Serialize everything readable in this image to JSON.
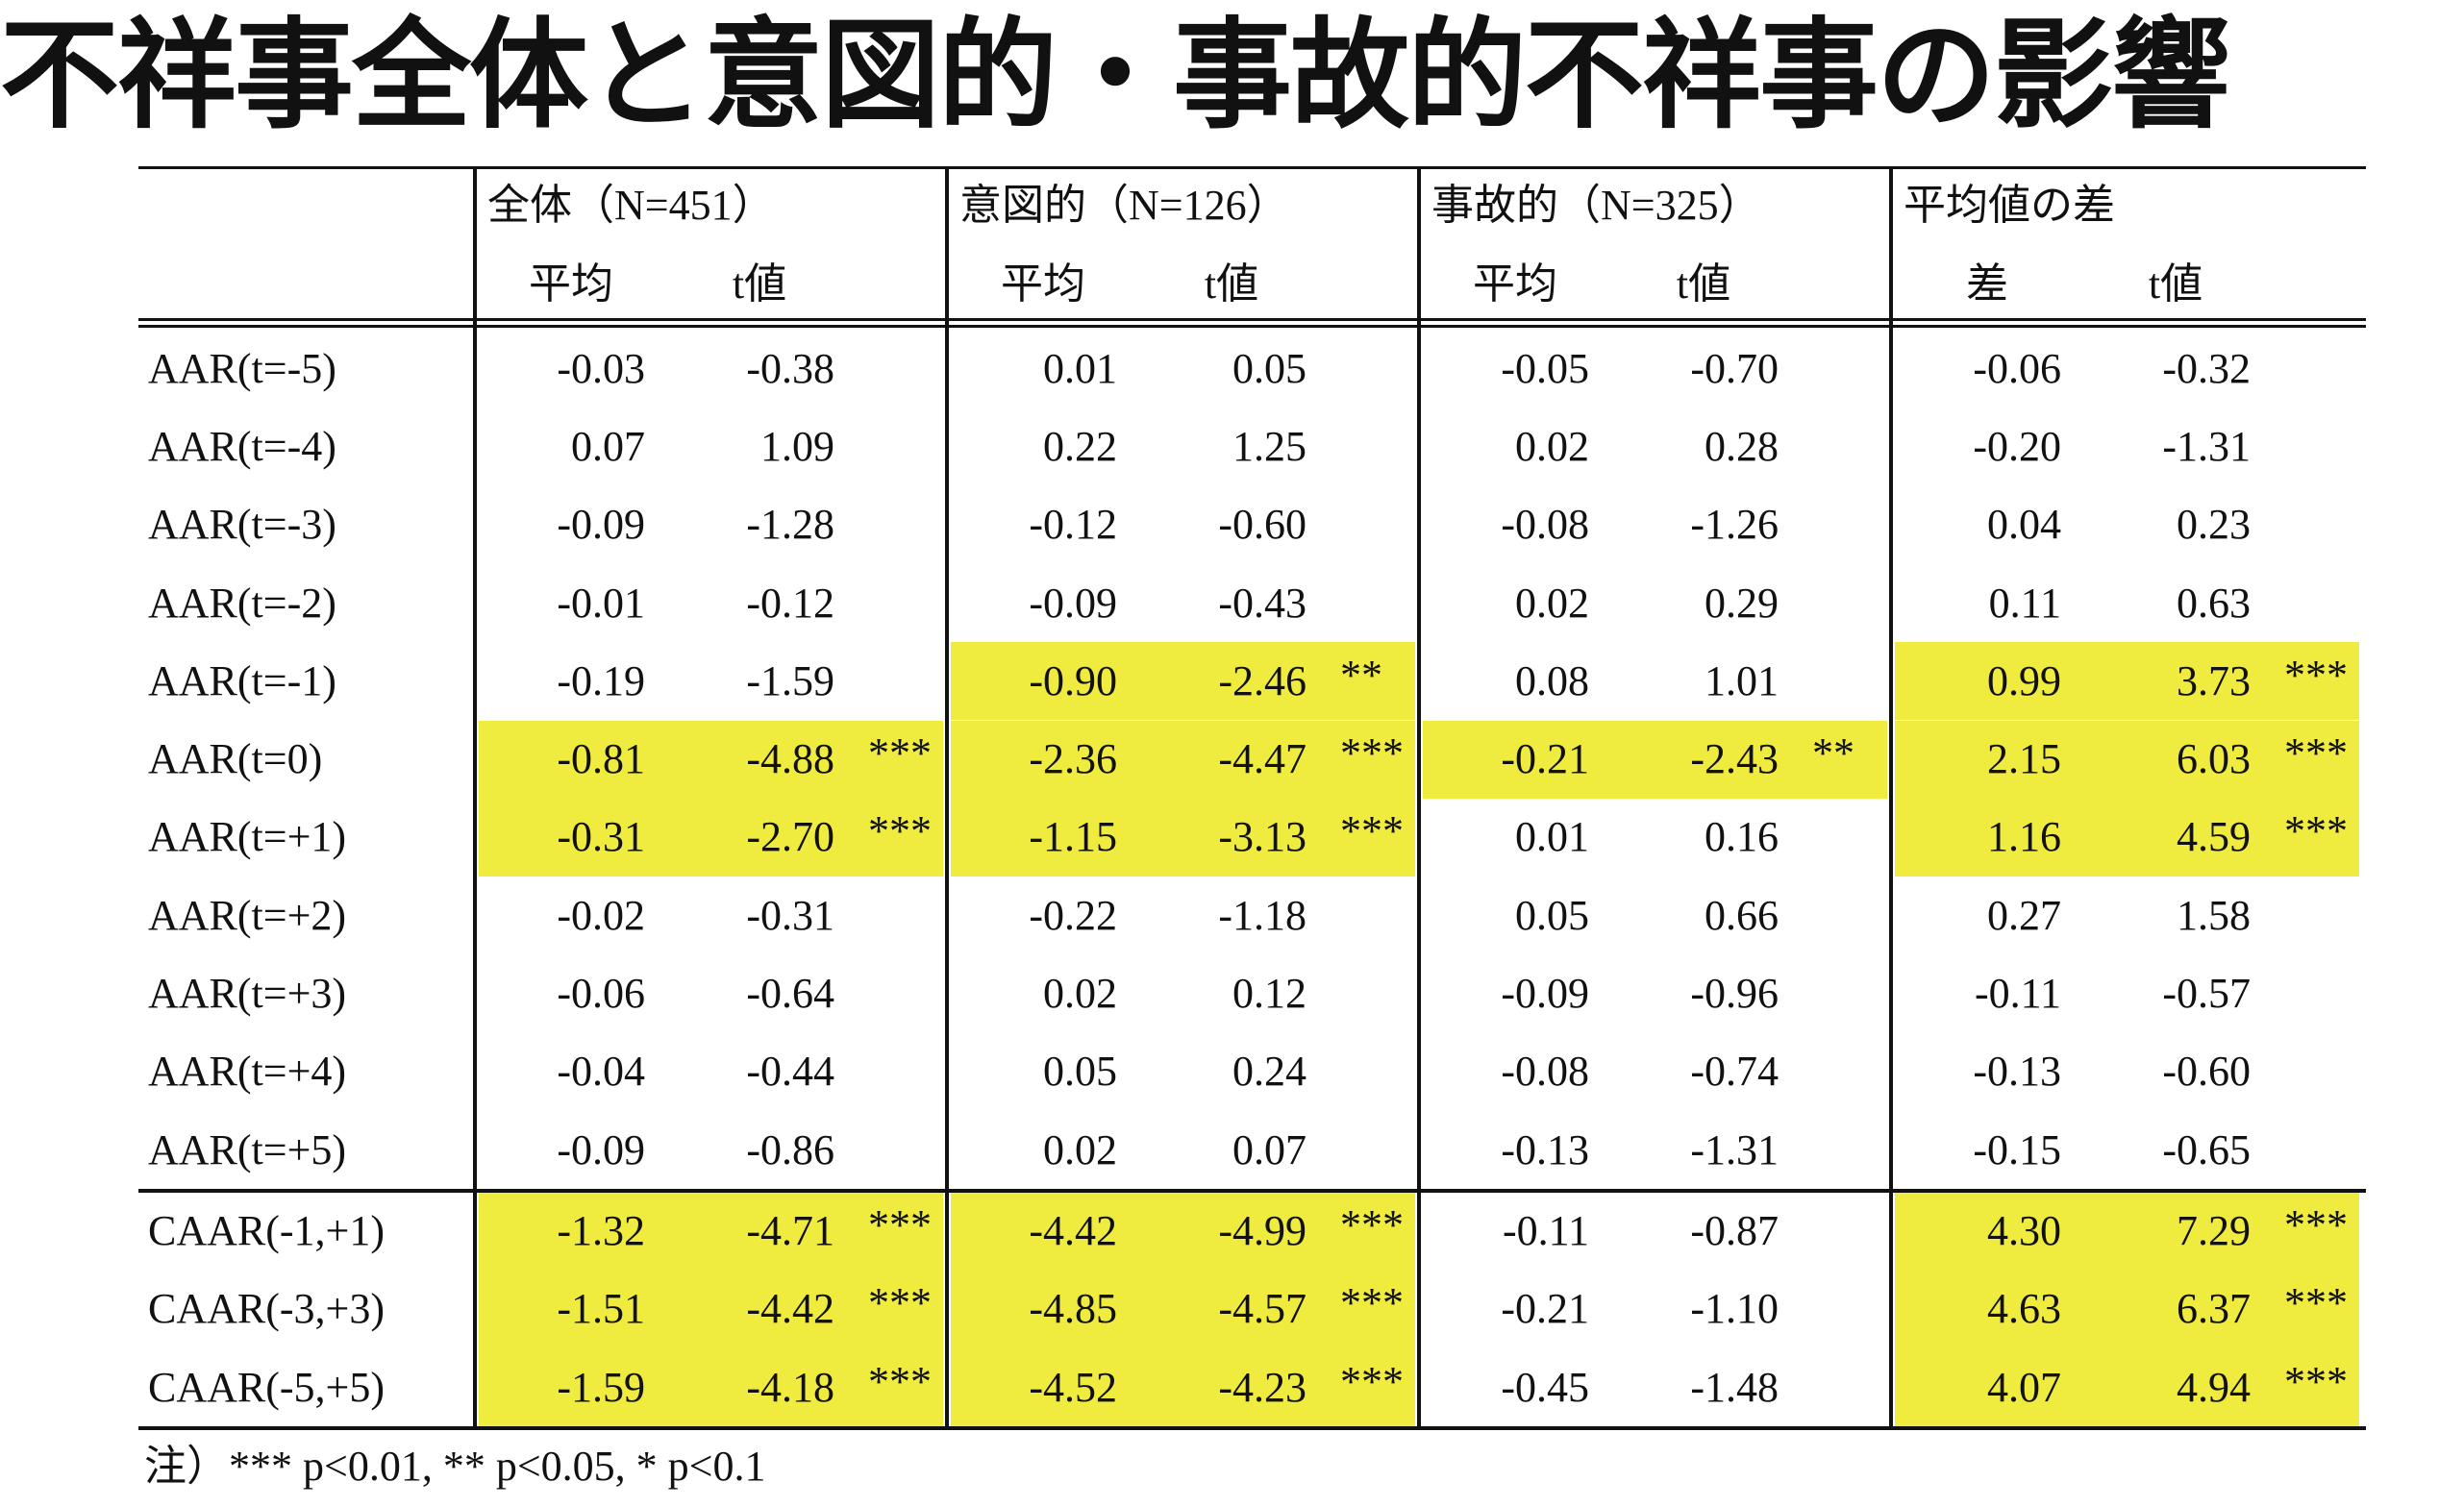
{
  "title": "不祥事全体と意図的・事故的不祥事の影響",
  "table": {
    "groups": [
      {
        "name": "全体（N=451）",
        "subheaders": [
          "平均",
          "t値"
        ]
      },
      {
        "name": "意図的（N=126）",
        "subheaders": [
          "平均",
          "t値"
        ]
      },
      {
        "name": "事故的（N=325）",
        "subheaders": [
          "平均",
          "t値"
        ]
      },
      {
        "name": "平均値の差",
        "subheaders": [
          "差",
          "t値"
        ]
      }
    ],
    "highlight_color": "#efeb3f",
    "rows": [
      {
        "label": "AAR(t=-5)",
        "cells": [
          {
            "mean": "-0.03",
            "t": "-0.38"
          },
          {
            "mean": "0.01",
            "t": "0.05"
          },
          {
            "mean": "-0.05",
            "t": "-0.70"
          },
          {
            "mean": "-0.06",
            "t": "-0.32"
          }
        ]
      },
      {
        "label": "AAR(t=-4)",
        "cells": [
          {
            "mean": "0.07",
            "t": "1.09"
          },
          {
            "mean": "0.22",
            "t": "1.25"
          },
          {
            "mean": "0.02",
            "t": "0.28"
          },
          {
            "mean": "-0.20",
            "t": "-1.31"
          }
        ]
      },
      {
        "label": "AAR(t=-3)",
        "cells": [
          {
            "mean": "-0.09",
            "t": "-1.28"
          },
          {
            "mean": "-0.12",
            "t": "-0.60"
          },
          {
            "mean": "-0.08",
            "t": "-1.26"
          },
          {
            "mean": "0.04",
            "t": "0.23"
          }
        ]
      },
      {
        "label": "AAR(t=-2)",
        "cells": [
          {
            "mean": "-0.01",
            "t": "-0.12"
          },
          {
            "mean": "-0.09",
            "t": "-0.43"
          },
          {
            "mean": "0.02",
            "t": "0.29"
          },
          {
            "mean": "0.11",
            "t": "0.63"
          }
        ]
      },
      {
        "label": "AAR(t=-1)",
        "cells": [
          {
            "mean": "-0.19",
            "t": "-1.59"
          },
          {
            "mean": "-0.90",
            "t": "-2.46",
            "stars": "**",
            "highlight": true
          },
          {
            "mean": "0.08",
            "t": "1.01"
          },
          {
            "mean": "0.99",
            "t": "3.73",
            "stars": "***",
            "highlight": true
          }
        ]
      },
      {
        "label": "AAR(t=0)",
        "cells": [
          {
            "mean": "-0.81",
            "t": "-4.88",
            "stars": "***",
            "highlight": true
          },
          {
            "mean": "-2.36",
            "t": "-4.47",
            "stars": "***",
            "highlight": true
          },
          {
            "mean": "-0.21",
            "t": "-2.43",
            "stars": "**",
            "highlight": true
          },
          {
            "mean": "2.15",
            "t": "6.03",
            "stars": "***",
            "highlight": true
          }
        ]
      },
      {
        "label": "AAR(t=+1)",
        "cells": [
          {
            "mean": "-0.31",
            "t": "-2.70",
            "stars": "***",
            "highlight": true
          },
          {
            "mean": "-1.15",
            "t": "-3.13",
            "stars": "***",
            "highlight": true
          },
          {
            "mean": "0.01",
            "t": "0.16"
          },
          {
            "mean": "1.16",
            "t": "4.59",
            "stars": "***",
            "highlight": true
          }
        ]
      },
      {
        "label": "AAR(t=+2)",
        "cells": [
          {
            "mean": "-0.02",
            "t": "-0.31"
          },
          {
            "mean": "-0.22",
            "t": "-1.18"
          },
          {
            "mean": "0.05",
            "t": "0.66"
          },
          {
            "mean": "0.27",
            "t": "1.58"
          }
        ]
      },
      {
        "label": "AAR(t=+3)",
        "cells": [
          {
            "mean": "-0.06",
            "t": "-0.64"
          },
          {
            "mean": "0.02",
            "t": "0.12"
          },
          {
            "mean": "-0.09",
            "t": "-0.96"
          },
          {
            "mean": "-0.11",
            "t": "-0.57"
          }
        ]
      },
      {
        "label": "AAR(t=+4)",
        "cells": [
          {
            "mean": "-0.04",
            "t": "-0.44"
          },
          {
            "mean": "0.05",
            "t": "0.24"
          },
          {
            "mean": "-0.08",
            "t": "-0.74"
          },
          {
            "mean": "-0.13",
            "t": "-0.60"
          }
        ]
      },
      {
        "label": "AAR(t=+5)",
        "cells": [
          {
            "mean": "-0.09",
            "t": "-0.86"
          },
          {
            "mean": "0.02",
            "t": "0.07"
          },
          {
            "mean": "-0.13",
            "t": "-1.31"
          },
          {
            "mean": "-0.15",
            "t": "-0.65"
          }
        ]
      },
      {
        "label": "CAAR(-1,+1)",
        "cells": [
          {
            "mean": "-1.32",
            "t": "-4.71",
            "stars": "***",
            "highlight": true
          },
          {
            "mean": "-4.42",
            "t": "-4.99",
            "stars": "***",
            "highlight": true
          },
          {
            "mean": "-0.11",
            "t": "-0.87"
          },
          {
            "mean": "4.30",
            "t": "7.29",
            "stars": "***",
            "highlight": true
          }
        ]
      },
      {
        "label": "CAAR(-3,+3)",
        "cells": [
          {
            "mean": "-1.51",
            "t": "-4.42",
            "stars": "***",
            "highlight": true
          },
          {
            "mean": "-4.85",
            "t": "-4.57",
            "stars": "***",
            "highlight": true
          },
          {
            "mean": "-0.21",
            "t": "-1.10"
          },
          {
            "mean": "4.63",
            "t": "6.37",
            "stars": "***",
            "highlight": true
          }
        ]
      },
      {
        "label": "CAAR(-5,+5)",
        "cells": [
          {
            "mean": "-1.59",
            "t": "-4.18",
            "stars": "***",
            "highlight": true
          },
          {
            "mean": "-4.52",
            "t": "-4.23",
            "stars": "***",
            "highlight": true
          },
          {
            "mean": "-0.45",
            "t": "-1.48"
          },
          {
            "mean": "4.07",
            "t": "4.94",
            "stars": "***",
            "highlight": true
          }
        ]
      }
    ]
  },
  "note": "注）*** p<0.01, ** p<0.05, * p<0.1"
}
